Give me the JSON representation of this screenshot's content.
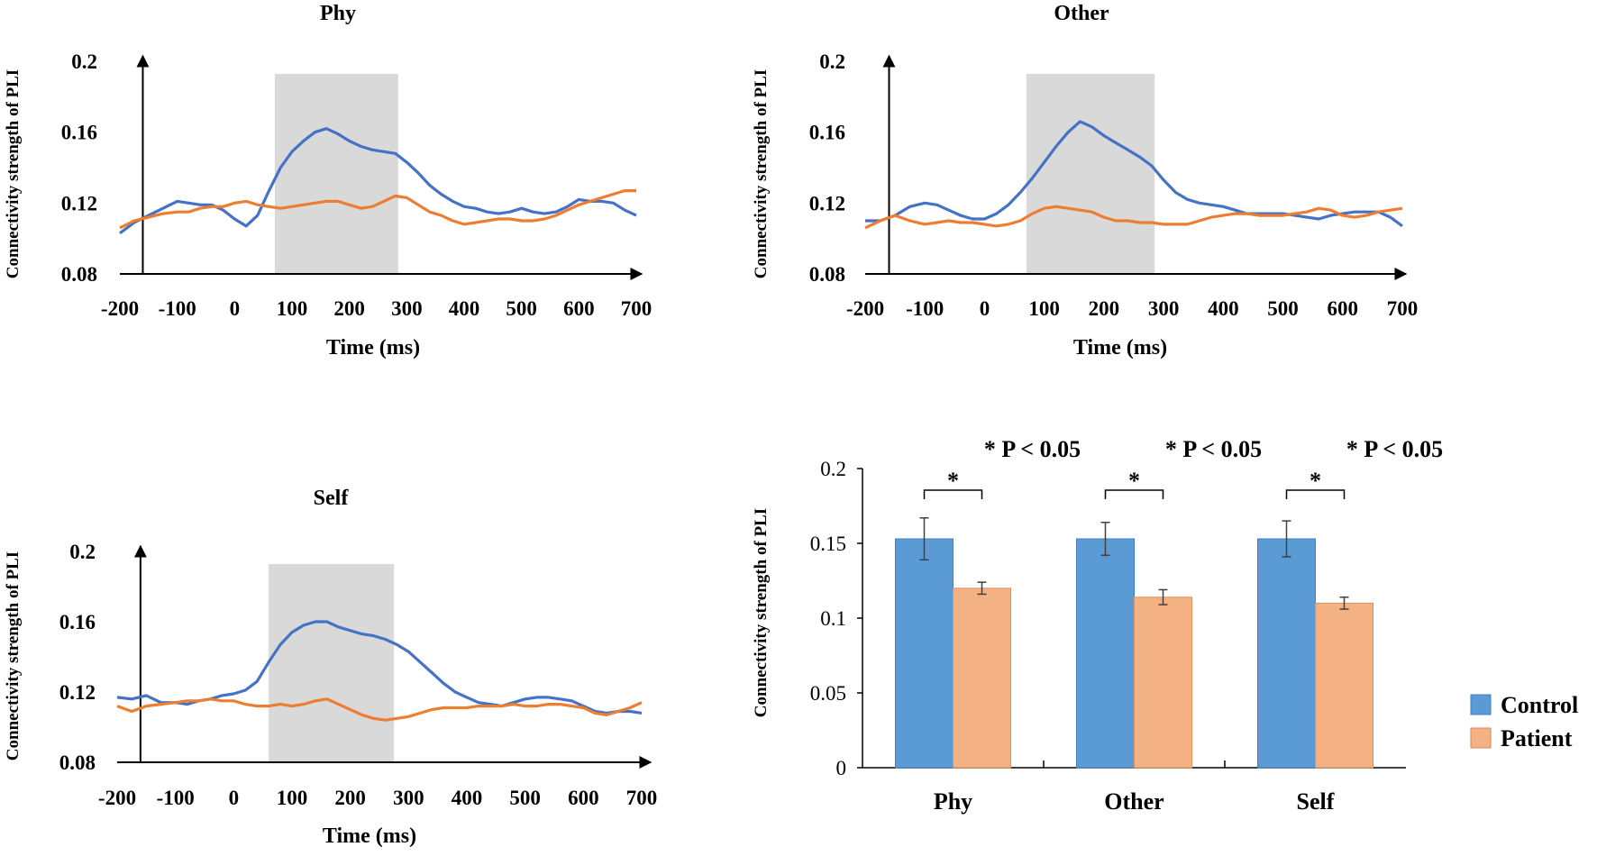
{
  "colors": {
    "control": "#4472C4",
    "patient": "#ED7D31",
    "control_bar": "#5B9BD5",
    "patient_bar": "#F4B183",
    "window": "#d9d9d9"
  },
  "chart_data": [
    {
      "id": "phy",
      "type": "line",
      "title": "Phy",
      "xlabel": "Time (ms)",
      "ylabel": "Connectivity  strength of PLI",
      "xlim": [
        -200,
        700
      ],
      "ylim": [
        0.08,
        0.2
      ],
      "xticks": [
        "-200",
        "-100",
        "0",
        "100",
        "200",
        "300",
        "400",
        "500",
        "600",
        "700"
      ],
      "yticks": [
        "0.08",
        "0.12",
        "0.16",
        "0.2"
      ],
      "highlight": [
        70,
        285
      ],
      "series": [
        {
          "name": "Control",
          "color": "#4472C4",
          "x": [
            -200,
            -175,
            -150,
            -125,
            -100,
            -80,
            -60,
            -40,
            -20,
            0,
            20,
            40,
            60,
            80,
            100,
            120,
            140,
            160,
            180,
            200,
            220,
            240,
            260,
            280,
            300,
            320,
            340,
            360,
            380,
            400,
            420,
            440,
            460,
            480,
            500,
            520,
            540,
            560,
            580,
            600,
            620,
            640,
            660,
            680,
            700
          ],
          "y": [
            0.103,
            0.109,
            0.113,
            0.117,
            0.121,
            0.12,
            0.119,
            0.119,
            0.116,
            0.111,
            0.107,
            0.113,
            0.127,
            0.14,
            0.149,
            0.155,
            0.16,
            0.162,
            0.159,
            0.155,
            0.152,
            0.15,
            0.149,
            0.148,
            0.143,
            0.137,
            0.13,
            0.125,
            0.121,
            0.118,
            0.117,
            0.115,
            0.114,
            0.115,
            0.117,
            0.115,
            0.114,
            0.115,
            0.118,
            0.122,
            0.121,
            0.121,
            0.12,
            0.116,
            0.113
          ]
        },
        {
          "name": "Patient",
          "color": "#ED7D31",
          "x": [
            -200,
            -175,
            -150,
            -125,
            -100,
            -80,
            -60,
            -40,
            -20,
            0,
            20,
            40,
            60,
            80,
            100,
            120,
            140,
            160,
            180,
            200,
            220,
            240,
            260,
            280,
            300,
            320,
            340,
            360,
            380,
            400,
            420,
            440,
            460,
            480,
            500,
            520,
            540,
            560,
            580,
            600,
            620,
            640,
            660,
            680,
            700
          ],
          "y": [
            0.106,
            0.11,
            0.112,
            0.114,
            0.115,
            0.115,
            0.117,
            0.118,
            0.118,
            0.12,
            0.121,
            0.119,
            0.118,
            0.117,
            0.118,
            0.119,
            0.12,
            0.121,
            0.121,
            0.119,
            0.117,
            0.118,
            0.121,
            0.124,
            0.123,
            0.119,
            0.115,
            0.113,
            0.11,
            0.108,
            0.109,
            0.11,
            0.111,
            0.111,
            0.11,
            0.11,
            0.111,
            0.113,
            0.116,
            0.119,
            0.121,
            0.123,
            0.125,
            0.127,
            0.127
          ]
        }
      ]
    },
    {
      "id": "other",
      "type": "line",
      "title": "Other",
      "xlabel": "Time (ms)",
      "ylabel": "Connectivity  strength of PLI",
      "xlim": [
        -200,
        700
      ],
      "ylim": [
        0.08,
        0.2
      ],
      "xticks": [
        "-200",
        "-100",
        "0",
        "100",
        "200",
        "300",
        "400",
        "500",
        "600",
        "700"
      ],
      "yticks": [
        "0.08",
        "0.12",
        "0.16",
        "0.2"
      ],
      "highlight": [
        70,
        285
      ],
      "series": [
        {
          "name": "Control",
          "color": "#4472C4",
          "x": [
            -200,
            -175,
            -150,
            -125,
            -100,
            -80,
            -60,
            -40,
            -20,
            0,
            20,
            40,
            60,
            80,
            100,
            120,
            140,
            160,
            180,
            200,
            220,
            240,
            260,
            280,
            300,
            320,
            340,
            360,
            380,
            400,
            420,
            440,
            460,
            480,
            500,
            520,
            540,
            560,
            580,
            600,
            620,
            640,
            660,
            680,
            700
          ],
          "y": [
            0.11,
            0.11,
            0.113,
            0.118,
            0.12,
            0.119,
            0.116,
            0.113,
            0.111,
            0.111,
            0.114,
            0.119,
            0.126,
            0.134,
            0.143,
            0.152,
            0.16,
            0.166,
            0.163,
            0.158,
            0.154,
            0.15,
            0.146,
            0.141,
            0.133,
            0.126,
            0.122,
            0.12,
            0.119,
            0.118,
            0.116,
            0.114,
            0.114,
            0.114,
            0.114,
            0.113,
            0.112,
            0.111,
            0.113,
            0.114,
            0.115,
            0.115,
            0.115,
            0.112,
            0.107
          ]
        },
        {
          "name": "Patient",
          "color": "#ED7D31",
          "x": [
            -200,
            -175,
            -150,
            -125,
            -100,
            -80,
            -60,
            -40,
            -20,
            0,
            20,
            40,
            60,
            80,
            100,
            120,
            140,
            160,
            180,
            200,
            220,
            240,
            260,
            280,
            300,
            320,
            340,
            360,
            380,
            400,
            420,
            440,
            460,
            480,
            500,
            520,
            540,
            560,
            580,
            600,
            620,
            640,
            660,
            680,
            700
          ],
          "y": [
            0.106,
            0.11,
            0.113,
            0.11,
            0.108,
            0.109,
            0.11,
            0.109,
            0.109,
            0.108,
            0.107,
            0.108,
            0.11,
            0.114,
            0.117,
            0.118,
            0.117,
            0.116,
            0.115,
            0.112,
            0.11,
            0.11,
            0.109,
            0.109,
            0.108,
            0.108,
            0.108,
            0.11,
            0.112,
            0.113,
            0.114,
            0.114,
            0.113,
            0.113,
            0.113,
            0.114,
            0.115,
            0.117,
            0.116,
            0.113,
            0.112,
            0.113,
            0.115,
            0.116,
            0.117
          ]
        }
      ]
    },
    {
      "id": "self",
      "type": "line",
      "title": "Self",
      "xlabel": "Time (ms)",
      "ylabel": "Connectivity  strength of PLI",
      "xlim": [
        -200,
        700
      ],
      "ylim": [
        0.08,
        0.2
      ],
      "xticks": [
        "-200",
        "-100",
        "0",
        "100",
        "200",
        "300",
        "400",
        "500",
        "600",
        "700"
      ],
      "yticks": [
        "0.08",
        "0.12",
        "0.16",
        "0.2"
      ],
      "highlight": [
        60,
        275
      ],
      "series": [
        {
          "name": "Control",
          "color": "#4472C4",
          "x": [
            -200,
            -175,
            -150,
            -125,
            -100,
            -80,
            -60,
            -40,
            -20,
            0,
            20,
            40,
            60,
            80,
            100,
            120,
            140,
            160,
            180,
            200,
            220,
            240,
            260,
            280,
            300,
            320,
            340,
            360,
            380,
            400,
            420,
            440,
            460,
            480,
            500,
            520,
            540,
            560,
            580,
            600,
            620,
            640,
            660,
            680,
            700
          ],
          "y": [
            0.117,
            0.116,
            0.118,
            0.114,
            0.114,
            0.113,
            0.115,
            0.116,
            0.118,
            0.119,
            0.121,
            0.126,
            0.137,
            0.147,
            0.154,
            0.158,
            0.16,
            0.16,
            0.157,
            0.155,
            0.153,
            0.152,
            0.15,
            0.147,
            0.143,
            0.137,
            0.131,
            0.125,
            0.12,
            0.117,
            0.114,
            0.113,
            0.112,
            0.114,
            0.116,
            0.117,
            0.117,
            0.116,
            0.115,
            0.112,
            0.109,
            0.108,
            0.109,
            0.109,
            0.108
          ]
        },
        {
          "name": "Patient",
          "color": "#ED7D31",
          "x": [
            -200,
            -175,
            -150,
            -125,
            -100,
            -80,
            -60,
            -40,
            -20,
            0,
            20,
            40,
            60,
            80,
            100,
            120,
            140,
            160,
            180,
            200,
            220,
            240,
            260,
            280,
            300,
            320,
            340,
            360,
            380,
            400,
            420,
            440,
            460,
            480,
            500,
            520,
            540,
            560,
            580,
            600,
            620,
            640,
            660,
            680,
            700
          ],
          "y": [
            0.112,
            0.109,
            0.112,
            0.113,
            0.114,
            0.115,
            0.115,
            0.116,
            0.115,
            0.115,
            0.113,
            0.112,
            0.112,
            0.113,
            0.112,
            0.113,
            0.115,
            0.116,
            0.113,
            0.11,
            0.107,
            0.105,
            0.104,
            0.105,
            0.106,
            0.108,
            0.11,
            0.111,
            0.111,
            0.111,
            0.112,
            0.112,
            0.112,
            0.113,
            0.112,
            0.112,
            0.113,
            0.113,
            0.112,
            0.111,
            0.108,
            0.107,
            0.109,
            0.111,
            0.114
          ]
        }
      ]
    },
    {
      "id": "bars",
      "type": "bar",
      "ylabel": "Connectivity  strength of PLI",
      "ylim": [
        0,
        0.2
      ],
      "yticks": [
        "0",
        "0.05",
        "0.1",
        "0.15",
        "0.2"
      ],
      "categories": [
        "Phy",
        "Other",
        "Self"
      ],
      "series": [
        {
          "name": "Control",
          "color": "#5B9BD5",
          "values": [
            0.153,
            0.153,
            0.153
          ],
          "errors": [
            0.014,
            0.011,
            0.012
          ]
        },
        {
          "name": "Patient",
          "color": "#F4B183",
          "values": [
            0.12,
            0.114,
            0.11
          ],
          "errors": [
            0.004,
            0.005,
            0.004
          ]
        }
      ],
      "significance_marker": "*",
      "annotation": "* P < 0.05",
      "legend": [
        "Control",
        "Patient"
      ],
      "legend_position": "right"
    }
  ]
}
